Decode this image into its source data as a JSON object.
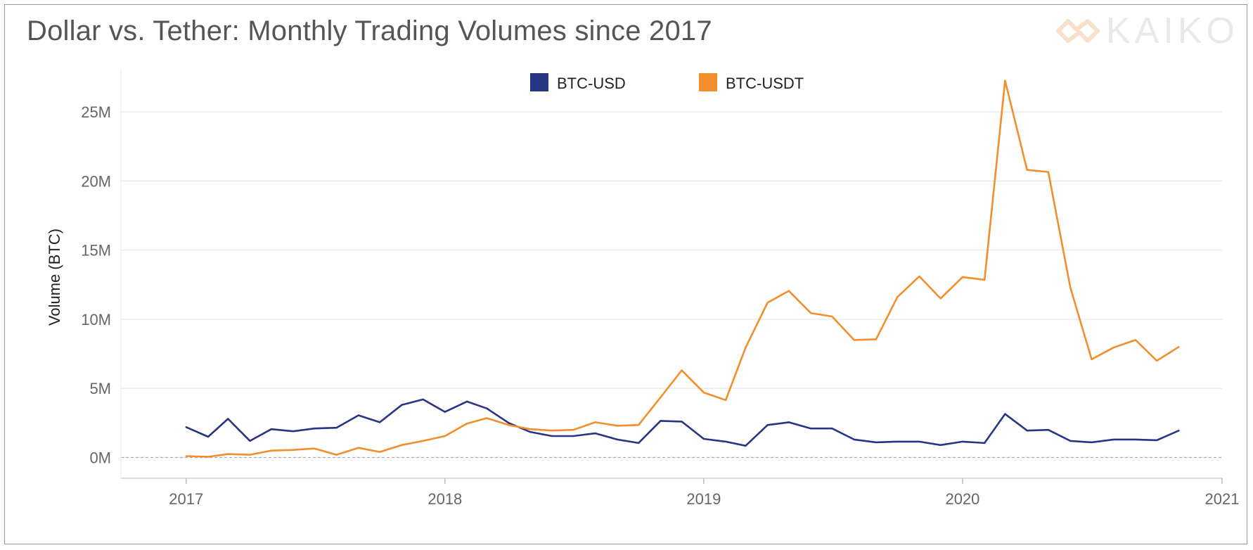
{
  "title": "Dollar vs. Tether: Monthly Trading Volumes since 2017",
  "logo": {
    "text": "KAIKO",
    "icon": "kaiko-logo-icon"
  },
  "colors": {
    "usd": "#283583",
    "usdt": "#F28E2B",
    "grid": "#ebebeb",
    "zero_line": "#aaaaaa"
  },
  "chart_data": {
    "type": "line",
    "ylabel": "Volume (BTC)",
    "xlabel": "",
    "ylim": [
      -1500000,
      28000000
    ],
    "xlim": [
      "2016-10-01",
      "2021-01-01"
    ],
    "y_ticks": [
      0,
      5000000,
      10000000,
      15000000,
      20000000,
      25000000
    ],
    "y_tick_labels": [
      "0M",
      "5M",
      "10M",
      "15M",
      "20M",
      "25M"
    ],
    "x_ticks": [
      "2017-01-01",
      "2018-01-01",
      "2019-01-01",
      "2020-01-01",
      "2021-01-01"
    ],
    "x_tick_labels": [
      "2017",
      "2018",
      "2019",
      "2020",
      "2021"
    ],
    "legend_position": "top-center",
    "grid": true,
    "x": [
      "2017-01",
      "2017-02",
      "2017-03",
      "2017-04",
      "2017-05",
      "2017-06",
      "2017-07",
      "2017-08",
      "2017-09",
      "2017-10",
      "2017-11",
      "2017-12",
      "2018-01",
      "2018-02",
      "2018-03",
      "2018-04",
      "2018-05",
      "2018-06",
      "2018-07",
      "2018-08",
      "2018-09",
      "2018-10",
      "2018-11",
      "2018-12",
      "2019-01",
      "2019-02",
      "2019-03",
      "2019-04",
      "2019-05",
      "2019-06",
      "2019-07",
      "2019-08",
      "2019-09",
      "2019-10",
      "2019-11",
      "2019-12",
      "2020-01",
      "2020-02",
      "2020-03",
      "2020-04",
      "2020-05",
      "2020-06",
      "2020-07",
      "2020-08",
      "2020-09",
      "2020-10",
      "2020-11"
    ],
    "series": [
      {
        "name": "BTC-USD",
        "values": [
          2200000,
          1500000,
          2800000,
          1200000,
          2050000,
          1900000,
          2100000,
          2150000,
          3050000,
          2550000,
          3800000,
          4200000,
          3300000,
          4050000,
          3550000,
          2500000,
          1850000,
          1550000,
          1550000,
          1750000,
          1300000,
          1050000,
          2650000,
          2600000,
          1350000,
          1150000,
          850000,
          2350000,
          2550000,
          2100000,
          2100000,
          1300000,
          1100000,
          1150000,
          1150000,
          900000,
          1150000,
          1050000,
          3150000,
          1950000,
          2000000,
          1200000,
          1100000,
          1300000,
          1300000,
          1250000,
          1950000
        ]
      },
      {
        "name": "BTC-USDT",
        "values": [
          100000,
          50000,
          250000,
          200000,
          500000,
          550000,
          650000,
          200000,
          700000,
          400000,
          900000,
          1200000,
          1550000,
          2450000,
          2850000,
          2350000,
          2050000,
          1950000,
          2000000,
          2550000,
          2300000,
          2350000,
          4350000,
          6300000,
          4700000,
          4150000,
          7950000,
          11200000,
          12050000,
          10450000,
          10200000,
          8500000,
          8550000,
          11600000,
          13100000,
          11500000,
          13050000,
          12850000,
          27250000,
          20800000,
          20650000,
          12300000,
          7100000,
          7950000,
          8500000,
          7000000,
          8000000
        ]
      }
    ]
  }
}
